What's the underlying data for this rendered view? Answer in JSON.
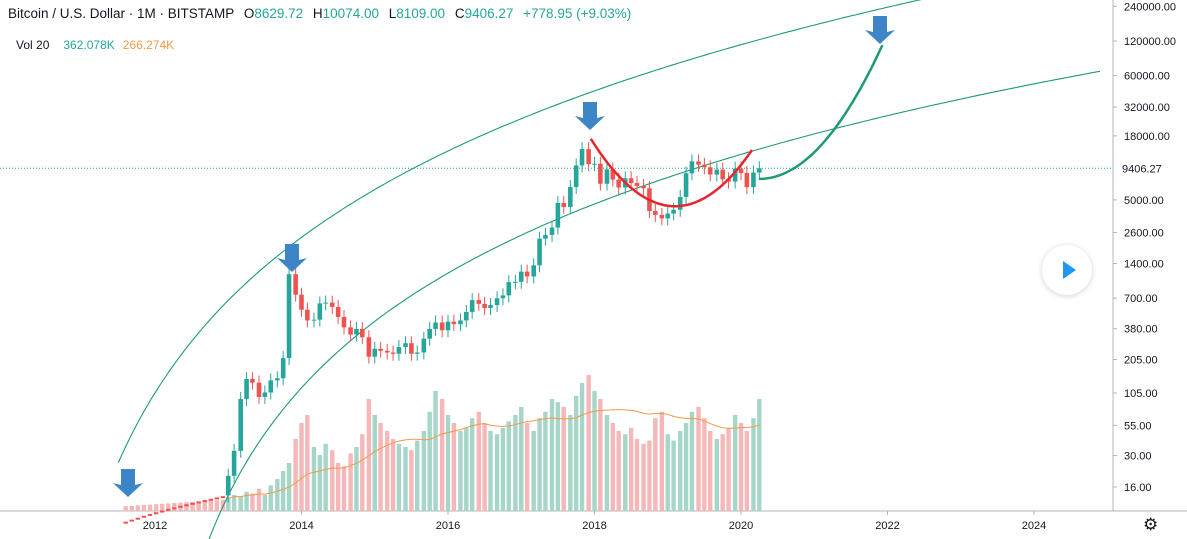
{
  "header": {
    "symbol": "Bitcoin / U.S. Dollar · 1M · BITSTAMP",
    "open_label": "O",
    "open": "8629.72",
    "high_label": "H",
    "high": "10074.00",
    "low_label": "L",
    "low": "8109.00",
    "close_label": "C",
    "close": "9406.27",
    "change": "+778.95 (+9.03%)"
  },
  "volume": {
    "label": "Vol 20",
    "value": "362.078K",
    "ma": "266.274K"
  },
  "price_tag": "9406.27",
  "colors": {
    "up": "#26a69a",
    "down": "#ef5350",
    "arrow": "#3d85c6",
    "curve_red": "#e5262e",
    "curve_green": "#1e9a74",
    "vol_ma": "#f2994a"
  },
  "icons": [
    "play-icon",
    "gear-icon",
    "down-arrow-icon"
  ],
  "chart_data": {
    "type": "candlestick",
    "scale": "log",
    "y_ticks": [
      "240000.00",
      "120000.00",
      "60000.00",
      "32000.00",
      "18000.00",
      "9406.27",
      "5000.00",
      "2600.00",
      "1400.00",
      "700.00",
      "380.00",
      "205.00",
      "105.00",
      "55.00",
      "30.00",
      "16.00"
    ],
    "x_ticks": [
      "2012",
      "2014",
      "2016",
      "2018",
      "2020",
      "2022",
      "2024"
    ],
    "ylim": [
      9,
      300000
    ],
    "xlim": [
      2011.05,
      2025.3
    ],
    "candles": [
      {
        "t": 2013.0,
        "o": 13.5,
        "c": 20
      },
      {
        "t": 2013.08,
        "o": 20,
        "c": 33
      },
      {
        "t": 2013.17,
        "o": 33,
        "c": 93
      },
      {
        "t": 2013.25,
        "o": 93,
        "c": 139
      },
      {
        "t": 2013.33,
        "o": 139,
        "c": 129
      },
      {
        "t": 2013.42,
        "o": 129,
        "c": 97
      },
      {
        "t": 2013.5,
        "o": 97,
        "c": 106
      },
      {
        "t": 2013.58,
        "o": 106,
        "c": 135
      },
      {
        "t": 2013.67,
        "o": 135,
        "c": 141
      },
      {
        "t": 2013.75,
        "o": 141,
        "c": 211
      },
      {
        "t": 2013.83,
        "o": 211,
        "c": 1130
      },
      {
        "t": 2013.92,
        "o": 1130,
        "c": 750
      },
      {
        "t": 2014.0,
        "o": 750,
        "c": 555
      },
      {
        "t": 2014.08,
        "o": 555,
        "c": 448
      },
      {
        "t": 2014.17,
        "o": 448,
        "c": 455
      },
      {
        "t": 2014.25,
        "o": 455,
        "c": 630
      },
      {
        "t": 2014.33,
        "o": 630,
        "c": 640
      },
      {
        "t": 2014.42,
        "o": 640,
        "c": 587
      },
      {
        "t": 2014.5,
        "o": 587,
        "c": 480
      },
      {
        "t": 2014.58,
        "o": 480,
        "c": 390
      },
      {
        "t": 2014.67,
        "o": 390,
        "c": 338
      },
      {
        "t": 2014.75,
        "o": 338,
        "c": 378
      },
      {
        "t": 2014.83,
        "o": 378,
        "c": 320
      },
      {
        "t": 2014.92,
        "o": 320,
        "c": 217
      },
      {
        "t": 2015.0,
        "o": 217,
        "c": 254
      },
      {
        "t": 2015.08,
        "o": 254,
        "c": 244
      },
      {
        "t": 2015.17,
        "o": 244,
        "c": 236
      },
      {
        "t": 2015.25,
        "o": 236,
        "c": 230
      },
      {
        "t": 2015.33,
        "o": 230,
        "c": 263
      },
      {
        "t": 2015.42,
        "o": 263,
        "c": 284
      },
      {
        "t": 2015.5,
        "o": 284,
        "c": 230
      },
      {
        "t": 2015.58,
        "o": 230,
        "c": 236
      },
      {
        "t": 2015.67,
        "o": 236,
        "c": 311
      },
      {
        "t": 2015.75,
        "o": 311,
        "c": 378
      },
      {
        "t": 2015.83,
        "o": 378,
        "c": 430
      },
      {
        "t": 2015.92,
        "o": 430,
        "c": 368
      },
      {
        "t": 2016.0,
        "o": 368,
        "c": 437
      },
      {
        "t": 2016.08,
        "o": 437,
        "c": 416
      },
      {
        "t": 2016.17,
        "o": 416,
        "c": 448
      },
      {
        "t": 2016.25,
        "o": 448,
        "c": 531
      },
      {
        "t": 2016.33,
        "o": 531,
        "c": 673
      },
      {
        "t": 2016.42,
        "o": 673,
        "c": 624
      },
      {
        "t": 2016.5,
        "o": 624,
        "c": 575
      },
      {
        "t": 2016.58,
        "o": 575,
        "c": 609
      },
      {
        "t": 2016.67,
        "o": 609,
        "c": 698
      },
      {
        "t": 2016.75,
        "o": 698,
        "c": 740
      },
      {
        "t": 2016.83,
        "o": 740,
        "c": 964
      },
      {
        "t": 2016.92,
        "o": 964,
        "c": 970
      },
      {
        "t": 2017.0,
        "o": 970,
        "c": 1190
      },
      {
        "t": 2017.08,
        "o": 1190,
        "c": 1080
      },
      {
        "t": 2017.17,
        "o": 1080,
        "c": 1350
      },
      {
        "t": 2017.25,
        "o": 1350,
        "c": 2300
      },
      {
        "t": 2017.33,
        "o": 2300,
        "c": 2480
      },
      {
        "t": 2017.42,
        "o": 2480,
        "c": 2870
      },
      {
        "t": 2017.5,
        "o": 2870,
        "c": 4700
      },
      {
        "t": 2017.58,
        "o": 4700,
        "c": 4340
      },
      {
        "t": 2017.67,
        "o": 4340,
        "c": 6460
      },
      {
        "t": 2017.75,
        "o": 6460,
        "c": 9950
      },
      {
        "t": 2017.83,
        "o": 9950,
        "c": 13800
      },
      {
        "t": 2017.92,
        "o": 13800,
        "c": 10200
      },
      {
        "t": 2018.0,
        "o": 10200,
        "c": 10300
      },
      {
        "t": 2018.08,
        "o": 10300,
        "c": 6900
      },
      {
        "t": 2018.17,
        "o": 6900,
        "c": 9200
      },
      {
        "t": 2018.25,
        "o": 9200,
        "c": 7500
      },
      {
        "t": 2018.33,
        "o": 7500,
        "c": 6400
      },
      {
        "t": 2018.42,
        "o": 6400,
        "c": 7700
      },
      {
        "t": 2018.5,
        "o": 7700,
        "c": 7000
      },
      {
        "t": 2018.58,
        "o": 7000,
        "c": 6600
      },
      {
        "t": 2018.67,
        "o": 6600,
        "c": 6300
      },
      {
        "t": 2018.75,
        "o": 6300,
        "c": 4000
      },
      {
        "t": 2018.83,
        "o": 4000,
        "c": 3700
      },
      {
        "t": 2018.92,
        "o": 3700,
        "c": 3450
      },
      {
        "t": 2019.0,
        "o": 3450,
        "c": 3800
      },
      {
        "t": 2019.08,
        "o": 3800,
        "c": 4100
      },
      {
        "t": 2019.17,
        "o": 4100,
        "c": 5300
      },
      {
        "t": 2019.25,
        "o": 5300,
        "c": 8500
      },
      {
        "t": 2019.33,
        "o": 8500,
        "c": 10800
      },
      {
        "t": 2019.42,
        "o": 10800,
        "c": 10100
      },
      {
        "t": 2019.5,
        "o": 10100,
        "c": 9600
      },
      {
        "t": 2019.58,
        "o": 9600,
        "c": 8300
      },
      {
        "t": 2019.67,
        "o": 8300,
        "c": 9150
      },
      {
        "t": 2019.75,
        "o": 9150,
        "c": 7550
      },
      {
        "t": 2019.83,
        "o": 7550,
        "c": 7200
      },
      {
        "t": 2019.92,
        "o": 7200,
        "c": 9350
      },
      {
        "t": 2020.0,
        "o": 9350,
        "c": 8550
      },
      {
        "t": 2020.08,
        "o": 8550,
        "c": 6450
      },
      {
        "t": 2020.17,
        "o": 6450,
        "c": 8630
      },
      {
        "t": 2020.25,
        "o": 8630,
        "c": 9406
      }
    ]
  }
}
